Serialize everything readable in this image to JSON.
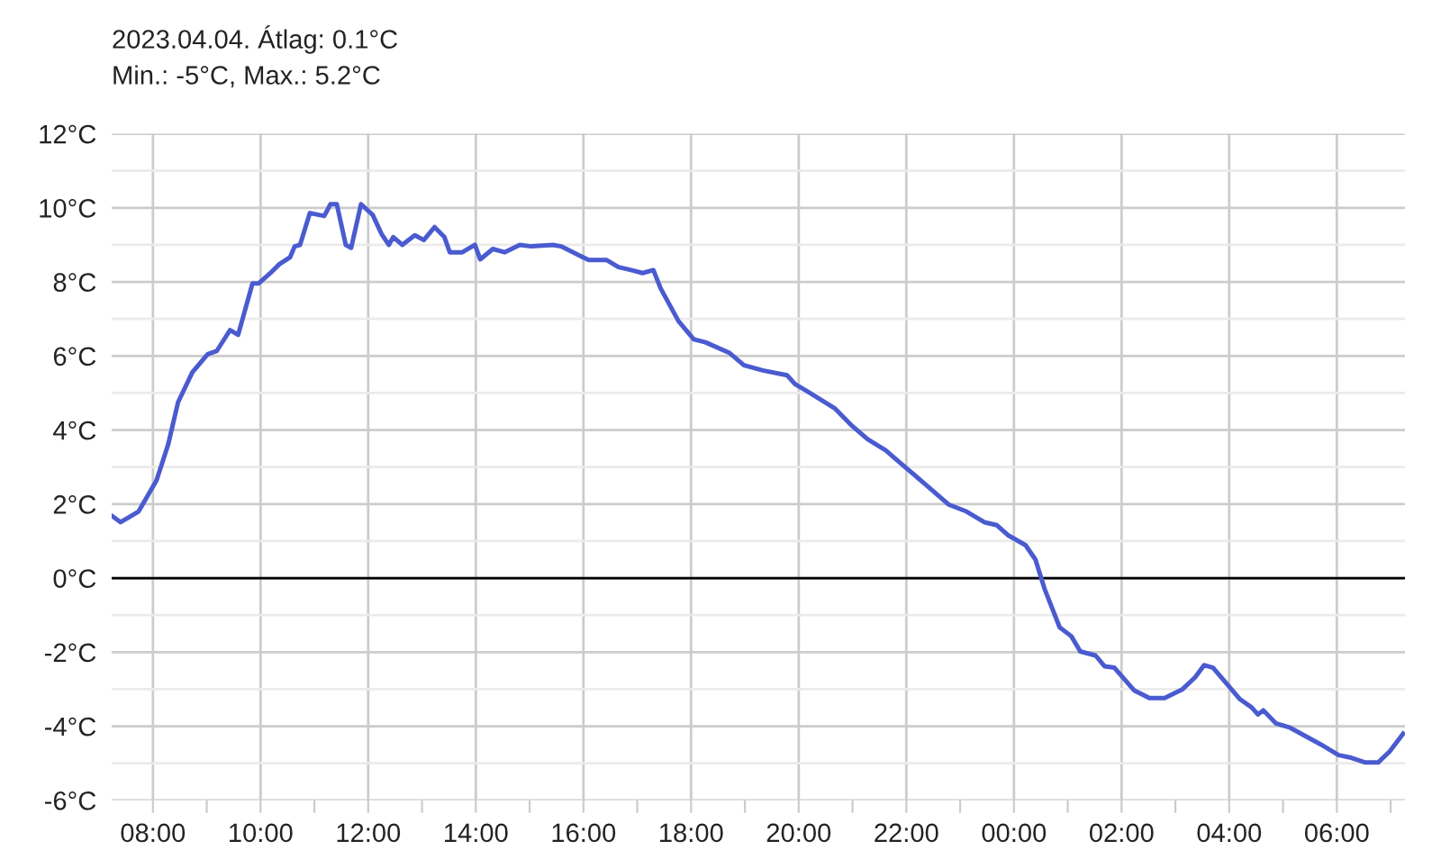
{
  "chart_data": {
    "type": "line",
    "title": "2023.04.04. Átlag: 0.1°C",
    "subtitle": "Min.: -5°C, Max.: 5.2°C",
    "x": [
      "2023-04-04T07:15",
      "2023-04-04T07:24",
      "2023-04-04T07:44",
      "2023-04-04T08:04",
      "2023-04-04T08:17",
      "2023-04-04T08:28",
      "2023-04-04T08:44",
      "2023-04-04T09:01",
      "2023-04-04T09:11",
      "2023-04-04T09:26",
      "2023-04-04T09:35",
      "2023-04-04T09:51",
      "2023-04-04T09:58",
      "2023-04-04T10:11",
      "2023-04-04T10:21",
      "2023-04-04T10:33",
      "2023-04-04T10:38",
      "2023-04-04T10:44",
      "2023-04-04T10:55",
      "2023-04-04T11:11",
      "2023-04-04T11:18",
      "2023-04-04T11:25",
      "2023-04-04T11:35",
      "2023-04-04T11:41",
      "2023-04-04T11:52",
      "2023-04-04T12:05",
      "2023-04-04T12:15",
      "2023-04-04T12:23",
      "2023-04-04T12:28",
      "2023-04-04T12:38",
      "2023-04-04T12:52",
      "2023-04-04T13:02",
      "2023-04-04T13:14",
      "2023-04-04T13:25",
      "2023-04-04T13:31",
      "2023-04-04T13:45",
      "2023-04-04T13:59",
      "2023-04-04T14:05",
      "2023-04-04T14:19",
      "2023-04-04T14:32",
      "2023-04-04T14:49",
      "2023-04-04T15:02",
      "2023-04-04T15:26",
      "2023-04-04T15:35",
      "2023-04-04T15:59",
      "2023-04-04T16:06",
      "2023-04-04T16:26",
      "2023-04-04T16:39",
      "2023-04-04T16:53",
      "2023-04-04T17:06",
      "2023-04-04T17:18",
      "2023-04-04T17:26",
      "2023-04-04T17:46",
      "2023-04-04T18:03",
      "2023-04-04T18:16",
      "2023-04-04T18:43",
      "2023-04-04T18:59",
      "2023-04-04T19:20",
      "2023-04-04T19:47",
      "2023-04-04T19:56",
      "2023-04-04T20:10",
      "2023-04-04T20:40",
      "2023-04-04T21:00",
      "2023-04-04T21:17",
      "2023-04-04T21:37",
      "2023-04-04T22:00",
      "2023-04-04T22:20",
      "2023-04-04T22:47",
      "2023-04-04T23:07",
      "2023-04-04T23:27",
      "2023-04-04T23:41",
      "2023-04-04T23:54",
      "2023-04-05T00:13",
      "2023-04-05T00:24",
      "2023-04-05T00:34",
      "2023-04-05T00:51",
      "2023-04-05T01:04",
      "2023-04-05T01:14",
      "2023-04-05T01:31",
      "2023-04-05T01:41",
      "2023-04-05T01:52",
      "2023-04-05T02:14",
      "2023-04-05T02:31",
      "2023-04-05T02:48",
      "2023-04-05T03:08",
      "2023-04-05T03:22",
      "2023-04-05T03:32",
      "2023-04-05T03:42",
      "2023-04-05T04:12",
      "2023-04-05T04:25",
      "2023-04-05T04:32",
      "2023-04-05T04:38",
      "2023-04-05T04:52",
      "2023-04-05T05:08",
      "2023-04-05T05:42",
      "2023-04-05T06:02",
      "2023-04-05T06:16",
      "2023-04-05T06:32",
      "2023-04-05T06:46",
      "2023-04-05T06:59",
      "2023-04-05T07:14"
    ],
    "series": [
      {
        "color": "#4a5bd0",
        "values": [
          1.67,
          1.51,
          1.8,
          2.64,
          3.61,
          4.75,
          5.56,
          6.05,
          6.13,
          6.7,
          6.57,
          7.96,
          7.96,
          8.24,
          8.48,
          8.67,
          8.96,
          9.0,
          9.86,
          9.78,
          10.1,
          10.1,
          9.0,
          8.92,
          10.1,
          9.81,
          9.29,
          9.0,
          9.21,
          9.0,
          9.26,
          9.13,
          9.48,
          9.21,
          8.8,
          8.8,
          9.0,
          8.61,
          8.89,
          8.8,
          9.0,
          8.96,
          9.0,
          8.96,
          8.67,
          8.59,
          8.59,
          8.4,
          8.32,
          8.24,
          8.32,
          7.83,
          6.94,
          6.45,
          6.37,
          6.08,
          5.75,
          5.61,
          5.48,
          5.24,
          5.04,
          4.59,
          4.1,
          3.75,
          3.45,
          2.97,
          2.56,
          1.99,
          1.8,
          1.51,
          1.43,
          1.15,
          0.89,
          0.5,
          -0.28,
          -1.33,
          -1.57,
          -1.98,
          -2.09,
          -2.38,
          -2.42,
          -3.03,
          -3.24,
          -3.24,
          -3.0,
          -2.68,
          -2.35,
          -2.42,
          -3.27,
          -3.49,
          -3.68,
          -3.57,
          -3.92,
          -4.04,
          -4.49,
          -4.78,
          -4.85,
          -4.98,
          -4.98,
          -4.68,
          -4.2
        ]
      }
    ],
    "xlim": [
      "2023-04-04T07:14",
      "2023-04-05T07:16"
    ],
    "xticks": [
      {
        "value": "2023-04-04T08:00",
        "label": "08:00"
      },
      {
        "value": "2023-04-04T09:00",
        "label": null
      },
      {
        "value": "2023-04-04T10:00",
        "label": "10:00"
      },
      {
        "value": "2023-04-04T11:00",
        "label": null
      },
      {
        "value": "2023-04-04T12:00",
        "label": "12:00"
      },
      {
        "value": "2023-04-04T13:00",
        "label": null
      },
      {
        "value": "2023-04-04T14:00",
        "label": "14:00"
      },
      {
        "value": "2023-04-04T15:00",
        "label": null
      },
      {
        "value": "2023-04-04T16:00",
        "label": "16:00"
      },
      {
        "value": "2023-04-04T17:00",
        "label": null
      },
      {
        "value": "2023-04-04T18:00",
        "label": "18:00"
      },
      {
        "value": "2023-04-04T19:00",
        "label": null
      },
      {
        "value": "2023-04-04T20:00",
        "label": "20:00"
      },
      {
        "value": "2023-04-04T21:00",
        "label": null
      },
      {
        "value": "2023-04-04T22:00",
        "label": "22:00"
      },
      {
        "value": "2023-04-04T23:00",
        "label": null
      },
      {
        "value": "2023-04-05T00:00",
        "label": "00:00"
      },
      {
        "value": "2023-04-05T01:00",
        "label": null
      },
      {
        "value": "2023-04-05T02:00",
        "label": "02:00"
      },
      {
        "value": "2023-04-05T03:00",
        "label": null
      },
      {
        "value": "2023-04-05T04:00",
        "label": "04:00"
      },
      {
        "value": "2023-04-05T05:00",
        "label": null
      },
      {
        "value": "2023-04-05T06:00",
        "label": "06:00"
      },
      {
        "value": "2023-04-05T07:00",
        "label": null
      }
    ],
    "ylim": [
      -6,
      12
    ],
    "yticks": [
      {
        "value": -6,
        "label": "-6°C"
      },
      {
        "value": -5,
        "label": null
      },
      {
        "value": -4,
        "label": "-4°C"
      },
      {
        "value": -3,
        "label": null
      },
      {
        "value": -2,
        "label": "-2°C"
      },
      {
        "value": -1,
        "label": null
      },
      {
        "value": 0,
        "label": "0°C"
      },
      {
        "value": 1,
        "label": null
      },
      {
        "value": 2,
        "label": "2°C"
      },
      {
        "value": 3,
        "label": null
      },
      {
        "value": 4,
        "label": "4°C"
      },
      {
        "value": 5,
        "label": null
      },
      {
        "value": 6,
        "label": "6°C"
      },
      {
        "value": 7,
        "label": null
      },
      {
        "value": 8,
        "label": "8°C"
      },
      {
        "value": 9,
        "label": null
      },
      {
        "value": 10,
        "label": "10°C"
      },
      {
        "value": 11,
        "label": null
      },
      {
        "value": 12,
        "label": "12°C"
      }
    ],
    "ref_lines": [
      {
        "axis": "y",
        "value": 0,
        "color": "#000000"
      }
    ],
    "grid": true,
    "legend": false,
    "marker": "none",
    "line_style": "solid"
  }
}
